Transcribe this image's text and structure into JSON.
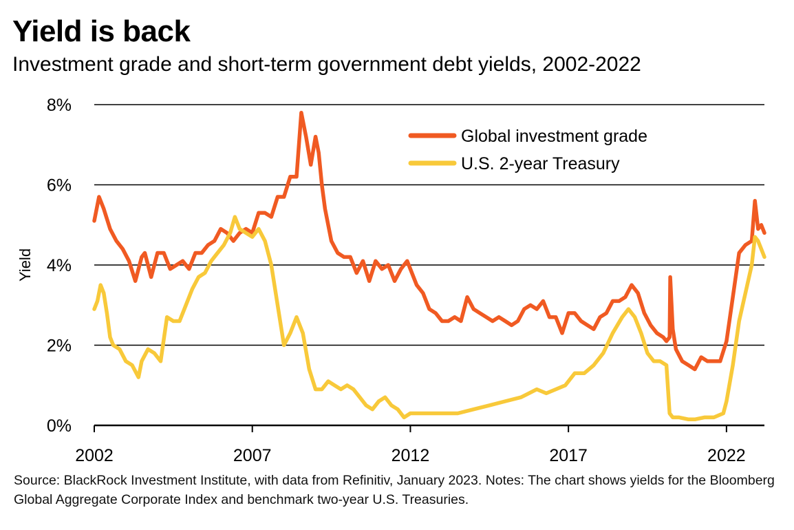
{
  "title": "Yield is back",
  "subtitle": "Investment grade and short-term government debt yields, 2002-2022",
  "source_note": "Source: BlackRock Investment Institute, with data from Refinitiv, January 2023. Notes: The chart shows yields for the Bloomberg Global Aggregate Corporate Index and benchmark two-year U.S. Treasuries.",
  "colors": {
    "global_ig": "#f05a22",
    "ust2y": "#f8c93a",
    "axis": "#000000"
  },
  "chart_data": {
    "type": "line",
    "title": "Yield is back",
    "xlabel": "",
    "ylabel": "Yield",
    "xlim": [
      2002,
      2023.2
    ],
    "ylim": [
      0,
      8
    ],
    "x_ticks": [
      2002,
      2007,
      2012,
      2017,
      2022
    ],
    "x_tick_labels": [
      "2002",
      "2007",
      "2012",
      "2017",
      "2022"
    ],
    "y_ticks": [
      0,
      2,
      4,
      6,
      8
    ],
    "y_tick_labels": [
      "0%",
      "2%",
      "4%",
      "6%",
      "8%"
    ],
    "grid": "horizontal",
    "legend_position": "top-right",
    "series": [
      {
        "name": "Global investment grade",
        "color": "#f05a22",
        "x": [
          2002.0,
          2002.15,
          2002.3,
          2002.5,
          2002.7,
          2002.9,
          2003.1,
          2003.3,
          2003.5,
          2003.6,
          2003.8,
          2004.0,
          2004.2,
          2004.4,
          2004.6,
          2004.8,
          2005.0,
          2005.2,
          2005.4,
          2005.6,
          2005.8,
          2006.0,
          2006.2,
          2006.4,
          2006.6,
          2006.8,
          2007.0,
          2007.2,
          2007.4,
          2007.6,
          2007.8,
          2008.0,
          2008.2,
          2008.4,
          2008.55,
          2008.7,
          2008.85,
          2009.0,
          2009.1,
          2009.2,
          2009.3,
          2009.4,
          2009.5,
          2009.7,
          2009.9,
          2010.1,
          2010.3,
          2010.5,
          2010.7,
          2010.9,
          2011.1,
          2011.3,
          2011.5,
          2011.7,
          2011.9,
          2012.0,
          2012.2,
          2012.4,
          2012.6,
          2012.8,
          2013.0,
          2013.2,
          2013.4,
          2013.6,
          2013.8,
          2014.0,
          2014.2,
          2014.4,
          2014.6,
          2014.8,
          2015.0,
          2015.2,
          2015.4,
          2015.6,
          2015.8,
          2016.0,
          2016.2,
          2016.4,
          2016.6,
          2016.8,
          2017.0,
          2017.2,
          2017.4,
          2017.6,
          2017.8,
          2018.0,
          2018.2,
          2018.4,
          2018.6,
          2018.8,
          2019.0,
          2019.2,
          2019.4,
          2019.6,
          2019.8,
          2020.0,
          2020.1,
          2020.2,
          2020.22,
          2020.3,
          2020.4,
          2020.6,
          2020.8,
          2021.0,
          2021.2,
          2021.4,
          2021.6,
          2021.8,
          2022.0,
          2022.2,
          2022.4,
          2022.6,
          2022.8,
          2022.9,
          2023.0,
          2023.1,
          2023.2
        ],
        "values": [
          5.1,
          5.7,
          5.4,
          4.9,
          4.6,
          4.4,
          4.1,
          3.6,
          4.2,
          4.3,
          3.7,
          4.3,
          4.3,
          3.9,
          4.0,
          4.1,
          3.9,
          4.3,
          4.3,
          4.5,
          4.6,
          4.9,
          4.8,
          4.6,
          4.8,
          4.9,
          4.8,
          5.3,
          5.3,
          5.2,
          5.7,
          5.7,
          6.2,
          6.2,
          7.8,
          7.2,
          6.5,
          7.2,
          6.8,
          6.0,
          5.4,
          5.0,
          4.6,
          4.3,
          4.2,
          4.2,
          3.8,
          4.1,
          3.6,
          4.1,
          3.9,
          4.0,
          3.6,
          3.9,
          4.1,
          3.9,
          3.5,
          3.3,
          2.9,
          2.8,
          2.6,
          2.6,
          2.7,
          2.6,
          3.2,
          2.9,
          2.8,
          2.7,
          2.6,
          2.7,
          2.6,
          2.5,
          2.6,
          2.9,
          3.0,
          2.9,
          3.1,
          2.7,
          2.7,
          2.3,
          2.8,
          2.8,
          2.6,
          2.5,
          2.4,
          2.7,
          2.8,
          3.1,
          3.1,
          3.2,
          3.5,
          3.3,
          2.8,
          2.5,
          2.3,
          2.2,
          2.1,
          2.2,
          3.7,
          2.4,
          1.9,
          1.6,
          1.5,
          1.4,
          1.7,
          1.6,
          1.6,
          1.6,
          2.1,
          3.2,
          4.3,
          4.5,
          4.6,
          5.6,
          4.9,
          5.0,
          4.8
        ],
        "note": "values approximated from chart line"
      },
      {
        "name": "U.S. 2-year Treasury",
        "color": "#f8c93a",
        "x": [
          2002.0,
          2002.1,
          2002.2,
          2002.3,
          2002.4,
          2002.5,
          2002.6,
          2002.8,
          2003.0,
          2003.2,
          2003.4,
          2003.5,
          2003.7,
          2003.9,
          2004.1,
          2004.3,
          2004.5,
          2004.7,
          2004.9,
          2005.1,
          2005.3,
          2005.5,
          2005.7,
          2005.9,
          2006.1,
          2006.3,
          2006.45,
          2006.6,
          2006.8,
          2007.0,
          2007.2,
          2007.4,
          2007.6,
          2007.8,
          2008.0,
          2008.2,
          2008.4,
          2008.6,
          2008.8,
          2009.0,
          2009.2,
          2009.4,
          2009.6,
          2009.8,
          2010.0,
          2010.2,
          2010.4,
          2010.6,
          2010.8,
          2011.0,
          2011.2,
          2011.4,
          2011.6,
          2011.8,
          2012.0,
          2012.5,
          2013.0,
          2013.5,
          2014.0,
          2014.5,
          2015.0,
          2015.5,
          2016.0,
          2016.3,
          2016.6,
          2016.9,
          2017.2,
          2017.5,
          2017.8,
          2018.1,
          2018.4,
          2018.7,
          2018.9,
          2019.1,
          2019.3,
          2019.5,
          2019.7,
          2019.9,
          2020.1,
          2020.2,
          2020.3,
          2020.5,
          2020.8,
          2021.0,
          2021.3,
          2021.6,
          2021.9,
          2022.0,
          2022.2,
          2022.4,
          2022.6,
          2022.8,
          2022.9,
          2023.0,
          2023.1,
          2023.2
        ],
        "values": [
          2.9,
          3.1,
          3.5,
          3.3,
          2.8,
          2.2,
          2.0,
          1.9,
          1.6,
          1.5,
          1.2,
          1.6,
          1.9,
          1.8,
          1.6,
          2.7,
          2.6,
          2.6,
          3.0,
          3.4,
          3.7,
          3.8,
          4.1,
          4.3,
          4.5,
          4.8,
          5.2,
          4.9,
          4.8,
          4.7,
          4.9,
          4.6,
          4.0,
          3.0,
          2.0,
          2.3,
          2.7,
          2.3,
          1.4,
          0.9,
          0.9,
          1.1,
          1.0,
          0.9,
          1.0,
          0.9,
          0.7,
          0.5,
          0.4,
          0.6,
          0.7,
          0.5,
          0.4,
          0.2,
          0.3,
          0.3,
          0.3,
          0.3,
          0.4,
          0.5,
          0.6,
          0.7,
          0.9,
          0.8,
          0.9,
          1.0,
          1.3,
          1.3,
          1.5,
          1.8,
          2.3,
          2.7,
          2.9,
          2.7,
          2.3,
          1.8,
          1.6,
          1.6,
          1.5,
          0.3,
          0.2,
          0.2,
          0.15,
          0.15,
          0.2,
          0.2,
          0.3,
          0.6,
          1.5,
          2.6,
          3.3,
          4.0,
          4.7,
          4.6,
          4.4,
          4.2
        ],
        "note": "values approximated from chart line"
      }
    ]
  }
}
